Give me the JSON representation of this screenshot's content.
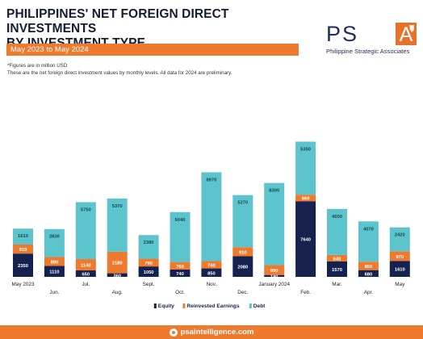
{
  "header": {
    "title_line1": "PHILIPPINES' NET FOREIGN DIRECT INVESTMENTS",
    "title_line2": "BY INVESTMENT TYPE",
    "subtitle": "May 2023 to May 2024"
  },
  "logo": {
    "letters": [
      "P",
      "S",
      "A"
    ],
    "caption": "Philippine Strategic Associates",
    "accent_color": "#e8722b",
    "text_color": "#1d2e5c"
  },
  "notes": {
    "line1": "*Figures are in million USD",
    "line2": "These are the net foreign direct investment values by monthly levels. All data for 2024 are preliminary."
  },
  "footer": {
    "icon": "globe-icon",
    "text": "psaintelligence.com",
    "color": "#ee7a2e"
  },
  "chart_data": {
    "type": "bar",
    "stacked": true,
    "categories": [
      "May 2023",
      "Jun.",
      "Jul.",
      "Aug.",
      "Sept.",
      "Oct.",
      "Nov.",
      "Dec.",
      "January 2024",
      "Feb.",
      "Mar.",
      "Apr.",
      "May"
    ],
    "series": [
      {
        "name": "Equity",
        "color": "#15224f",
        "values": [
          2350,
          1110,
          650,
          360,
          1050,
          740,
          850,
          2080,
          190,
          7640,
          1570,
          680,
          1610
        ]
      },
      {
        "name": "Reinvested Earnings",
        "color": "#ee7a2e",
        "values": [
          910,
          890,
          1140,
          2180,
          790,
          760,
          740,
          910,
          990,
          660,
          640,
          850,
          970
        ]
      },
      {
        "name": "Debt",
        "color": "#5cc4cc",
        "values": [
          1610,
          2830,
          5750,
          5370,
          2380,
          5040,
          8970,
          5270,
          8300,
          5350,
          4650,
          4070,
          2420
        ]
      }
    ],
    "legend_position": "bottom",
    "grid": false,
    "label_color_light": "#ffffff",
    "label_color_on_teal": "#1a4450"
  }
}
